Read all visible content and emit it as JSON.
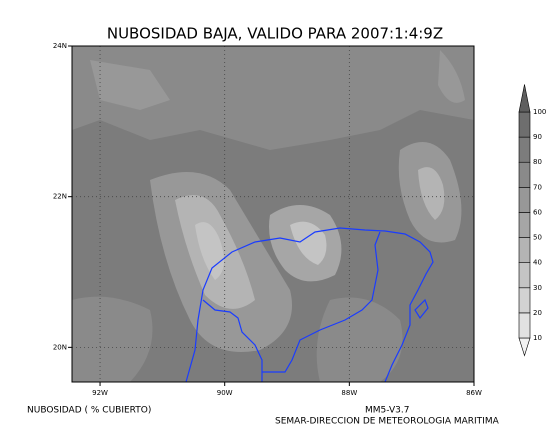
{
  "map": {
    "title": "NUBOSIDAD BAJA, VALIDO PARA 2007:1:4:9Z",
    "lon_range": [
      -92.45,
      -86
    ],
    "lat_range": [
      19.54,
      24
    ],
    "lon_ticks": [
      {
        "value": -92,
        "label": "92W"
      },
      {
        "value": -90,
        "label": "90W"
      },
      {
        "value": -88,
        "label": "88W"
      },
      {
        "value": -86,
        "label": "86W"
      }
    ],
    "lat_ticks": [
      {
        "value": 20,
        "label": "20N"
      },
      {
        "value": 22,
        "label": "22N"
      },
      {
        "value": 24,
        "label": "24N"
      }
    ],
    "colorbar": {
      "levels": [
        10,
        20,
        30,
        40,
        50,
        60,
        70,
        80,
        90,
        100
      ],
      "colors": [
        "#f2f2f2",
        "#e2e2e2",
        "#d2d2d2",
        "#c4c4c4",
        "#b4b4b4",
        "#a6a6a6",
        "#989898",
        "#8a8a8a",
        "#7c7c7c",
        "#6e6e6e",
        "#5e5e5e"
      ]
    },
    "footer_left": "NUBOSIDAD ( % CUBIERTO)",
    "footer_model": "MM5-V3.7",
    "footer_source": "SEMAR-DIRECCION DE METEOROLOGIA MARITIMA"
  }
}
